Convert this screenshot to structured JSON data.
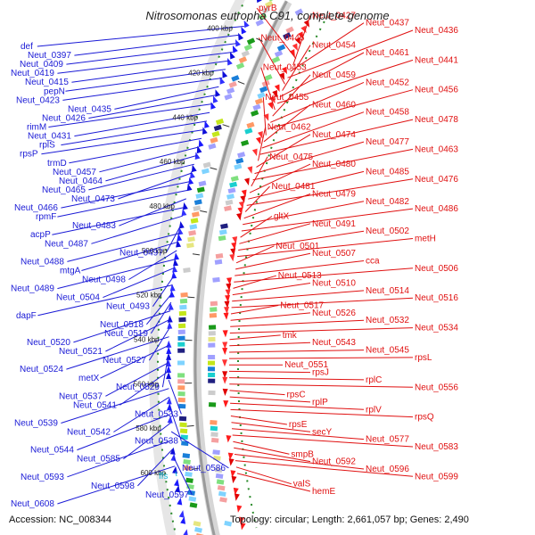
{
  "title": "Nitrosomonas eutropha C91, complete genome",
  "footer": {
    "accession": "Accession: NC_008344",
    "stats": "Topology: circular; Length: 2,661,057 bp; Genes: 2,490"
  },
  "colors": {
    "left_labels": "#1a1ad6",
    "right_labels": "#e01010",
    "rna_label": "#17b8d6",
    "backbone": "#9a9a9a",
    "dotted_ring": "#2a8a2a"
  },
  "ticks": [
    "400 kbp",
    "420 kbp",
    "440 kbp",
    "460 kbp",
    "480 kbp",
    "500 kbp",
    "520 kbp",
    "540 kbp",
    "560 kbp",
    "580 kbp",
    "600 kbp"
  ],
  "left_labels": [
    "def",
    "Neut_0397",
    "Neut_0409",
    "Neut_0419",
    "Neut_0415",
    "pepN",
    "Neut_0423",
    "Neut_0435",
    "Neut_0426",
    "rimM",
    "Neut_0431",
    "rplS",
    "rpsP",
    "trmD",
    "Neut_0457",
    "Neut_0464",
    "Neut_0465",
    "Neut_0473",
    "Neut_0466",
    "rpmF",
    "Neut_0483",
    "acpP",
    "Neut_0487",
    "Neut_0497",
    "Neut_0488",
    "mtgA",
    "Neut_0498",
    "Neut_0489",
    "Neut_0504",
    "Neut_0493",
    "dapF",
    "Neut_0518",
    "Neut_0519",
    "Neut_0520",
    "Neut_0521",
    "Neut_0527",
    "Neut_0524",
    "metX",
    "Neut_0529",
    "Neut_0537",
    "Neut_0541",
    "Neut_0533",
    "Neut_0539",
    "Neut_0542",
    "Neut_0538",
    "Neut_0544",
    "Neut_0585",
    "Neut_0586",
    "Neut_0593",
    "Neut_0598",
    "Neut_0597",
    "Neut_0608"
  ],
  "rna_labels": [
    "ffs"
  ],
  "right_labels": [
    "pyrB",
    "Neut_0427",
    "Neut_0437",
    "Neut_0436",
    "Neut_0446",
    "Neut_0454",
    "Neut_0461",
    "Neut_0441",
    "Neut_0453",
    "Neut_0459",
    "Neut_0452",
    "Neut_0456",
    "Neut_0455",
    "Neut_0460",
    "Neut_0458",
    "Neut_0478",
    "Neut_0462",
    "Neut_0474",
    "Neut_0477",
    "Neut_0463",
    "Neut_0475",
    "Neut_0480",
    "Neut_0485",
    "Neut_0476",
    "Neut_0481",
    "Neut_0479",
    "Neut_0482",
    "Neut_0486",
    "gltX",
    "Neut_0491",
    "Neut_0502",
    "metH",
    "Neut_0501",
    "Neut_0507",
    "cca",
    "Neut_0506",
    "Neut_0513",
    "Neut_0510",
    "Neut_0514",
    "Neut_0516",
    "Neut_0517",
    "Neut_0526",
    "Neut_0532",
    "Neut_0534",
    "tmk",
    "Neut_0543",
    "Neut_0545",
    "rpsL",
    "Neut_0551",
    "rpsJ",
    "rplC",
    "Neut_0556",
    "rpsC",
    "rplP",
    "rplV",
    "rpsQ",
    "rpsE",
    "secY",
    "Neut_0577",
    "Neut_0583",
    "smpB",
    "Neut_0592",
    "Neut_0596",
    "Neut_0599",
    "valS",
    "hemE"
  ]
}
